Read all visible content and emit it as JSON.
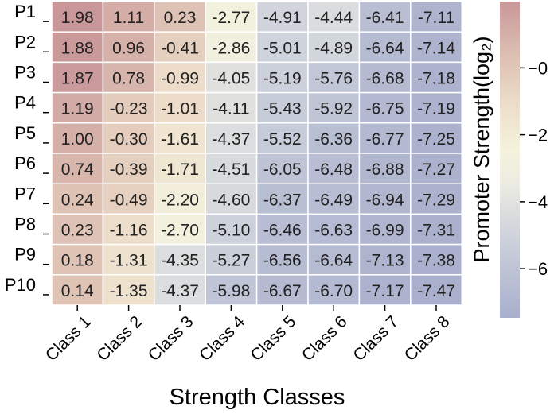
{
  "chart_data": {
    "type": "heatmap",
    "xlabel": "Strength Classes",
    "ylabel": "",
    "categories": [
      "Class 1",
      "Class 2",
      "Class 3",
      "Class 4",
      "Class 5",
      "Class 6",
      "Class 7",
      "Class 8"
    ],
    "rows": [
      "P1",
      "P2",
      "P3",
      "P4",
      "P5",
      "P6",
      "P7",
      "P8",
      "P9",
      "P10"
    ],
    "values": [
      [
        1.98,
        1.11,
        0.23,
        -2.77,
        -4.91,
        -4.44,
        -6.41,
        -7.11
      ],
      [
        1.88,
        0.96,
        -0.41,
        -2.86,
        -5.01,
        -4.89,
        -6.64,
        -7.14
      ],
      [
        1.87,
        0.78,
        -0.99,
        -4.05,
        -5.19,
        -5.76,
        -6.68,
        -7.18
      ],
      [
        1.19,
        -0.23,
        -1.01,
        -4.11,
        -5.43,
        -5.92,
        -6.75,
        -7.19
      ],
      [
        1.0,
        -0.3,
        -1.61,
        -4.37,
        -5.52,
        -6.36,
        -6.77,
        -7.25
      ],
      [
        0.74,
        -0.39,
        -1.71,
        -4.51,
        -6.05,
        -6.48,
        -6.88,
        -7.27
      ],
      [
        0.24,
        -0.49,
        -2.2,
        -4.6,
        -6.37,
        -6.49,
        -6.94,
        -7.29
      ],
      [
        0.23,
        -1.16,
        -2.7,
        -5.1,
        -6.46,
        -6.63,
        -6.99,
        -7.31
      ],
      [
        0.18,
        -1.31,
        -4.35,
        -5.27,
        -6.56,
        -6.64,
        -7.13,
        -7.38
      ],
      [
        0.14,
        -1.35,
        -4.37,
        -5.98,
        -6.67,
        -6.7,
        -7.17,
        -7.47
      ]
    ],
    "value_labels": [
      [
        "1.98",
        "1.11",
        "0.23",
        "-2.77",
        "-4.91",
        "-4.44",
        "-6.41",
        "-7.11"
      ],
      [
        "1.88",
        "0.96",
        "-0.41",
        "-2.86",
        "-5.01",
        "-4.89",
        "-6.64",
        "-7.14"
      ],
      [
        "1.87",
        "0.78",
        "-0.99",
        "-4.05",
        "-5.19",
        "-5.76",
        "-6.68",
        "-7.18"
      ],
      [
        "1.19",
        "-0.23",
        "-1.01",
        "-4.11",
        "-5.43",
        "-5.92",
        "-6.75",
        "-7.19"
      ],
      [
        "1.00",
        "-0.30",
        "-1.61",
        "-4.37",
        "-5.52",
        "-6.36",
        "-6.77",
        "-7.25"
      ],
      [
        "0.74",
        "-0.39",
        "-1.71",
        "-4.51",
        "-6.05",
        "-6.48",
        "-6.88",
        "-7.27"
      ],
      [
        "0.24",
        "-0.49",
        "-2.20",
        "-4.60",
        "-6.37",
        "-6.49",
        "-6.94",
        "-7.29"
      ],
      [
        "0.23",
        "-1.16",
        "-2.70",
        "-5.10",
        "-6.46",
        "-6.63",
        "-6.99",
        "-7.31"
      ],
      [
        "0.18",
        "-1.31",
        "-4.35",
        "-5.27",
        "-6.56",
        "-6.64",
        "-7.13",
        "-7.38"
      ],
      [
        "0.14",
        "-1.35",
        "-4.37",
        "-5.98",
        "-6.67",
        "-6.70",
        "-7.17",
        "-7.47"
      ]
    ],
    "colorbar": {
      "label": "Promoter Strength(log₂)",
      "ticks": [
        0,
        -2,
        -4,
        -6
      ],
      "tick_labels": [
        "−0",
        "−2",
        "−4",
        "−6"
      ],
      "range": [
        -7.47,
        1.98
      ],
      "stops": [
        {
          "value": -7.47,
          "color": "#a9afcc"
        },
        {
          "value": -5.5,
          "color": "#c6cbd9"
        },
        {
          "value": -3.5,
          "color": "#ebebe2"
        },
        {
          "value": -2.5,
          "color": "#f5f3dd"
        },
        {
          "value": -1.0,
          "color": "#ecdcc9"
        },
        {
          "value": 0.5,
          "color": "#dbbcb0"
        },
        {
          "value": 1.98,
          "color": "#c9979a"
        }
      ]
    },
    "grid": false
  }
}
